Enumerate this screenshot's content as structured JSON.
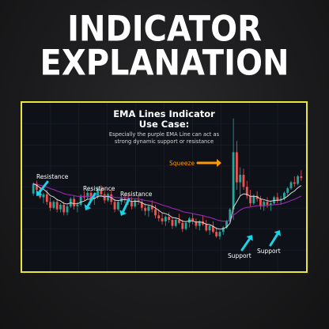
{
  "header": {
    "line1": "INDICATOR",
    "line2": "EXPLANATION"
  },
  "panel": {
    "title_line1": "EMA Lines Indicator",
    "title_line2": "Use Case:",
    "desc_line1": "Especially the purple EMA Line can act as",
    "desc_line2": "strong dynamic support or resistance"
  },
  "colors": {
    "border": "#e9e63a",
    "background": "#0e1118",
    "up_candle": "#26a69a",
    "down_candle": "#ef5350",
    "ema_white": "#d9d9d9",
    "ema_purple": "#9c27b0",
    "arrow_cyan": "#19d3e6",
    "arrow_orange": "#ff9800"
  },
  "chart_data": {
    "type": "candlestick",
    "ylim": [
      0,
      200
    ],
    "grid": true,
    "annotations": [
      {
        "text": "Resistance",
        "color": "#ffffff",
        "arrow": "arrow-cyan"
      },
      {
        "text": "Resistance",
        "color": "#ffffff",
        "arrow": "arrow-cyan"
      },
      {
        "text": "Resistance",
        "color": "#ffffff",
        "arrow": "arrow-cyan"
      },
      {
        "text": "Squeeze",
        "color": "#ff9800",
        "arrow": "arrow-orange"
      },
      {
        "text": "Support",
        "color": "#ffffff",
        "arrow": "arrow-cyan"
      },
      {
        "text": "Support",
        "color": "#ffffff",
        "arrow": "arrow-cyan"
      }
    ],
    "candles": [
      [
        95,
        110,
        92,
        108
      ],
      [
        108,
        112,
        96,
        100
      ],
      [
        100,
        104,
        88,
        90
      ],
      [
        90,
        96,
        82,
        94
      ],
      [
        94,
        100,
        80,
        84
      ],
      [
        84,
        90,
        72,
        76
      ],
      [
        76,
        86,
        74,
        84
      ],
      [
        84,
        88,
        70,
        74
      ],
      [
        74,
        82,
        70,
        80
      ],
      [
        80,
        84,
        66,
        70
      ],
      [
        70,
        80,
        66,
        78
      ],
      [
        78,
        90,
        76,
        88
      ],
      [
        88,
        92,
        74,
        78
      ],
      [
        78,
        84,
        70,
        80
      ],
      [
        80,
        94,
        78,
        92
      ],
      [
        92,
        98,
        86,
        90
      ],
      [
        90,
        100,
        88,
        96
      ],
      [
        96,
        100,
        84,
        88
      ],
      [
        88,
        92,
        80,
        90
      ],
      [
        90,
        104,
        88,
        102
      ],
      [
        102,
        106,
        90,
        94
      ],
      [
        94,
        98,
        82,
        86
      ],
      [
        86,
        96,
        84,
        94
      ],
      [
        94,
        100,
        80,
        84
      ],
      [
        84,
        88,
        70,
        74
      ],
      [
        74,
        86,
        72,
        84
      ],
      [
        84,
        92,
        80,
        90
      ],
      [
        90,
        96,
        82,
        88
      ],
      [
        88,
        94,
        80,
        84
      ],
      [
        84,
        90,
        74,
        78
      ],
      [
        78,
        88,
        76,
        86
      ],
      [
        86,
        92,
        80,
        84
      ],
      [
        84,
        88,
        72,
        76
      ],
      [
        76,
        82,
        66,
        72
      ],
      [
        72,
        80,
        64,
        78
      ],
      [
        78,
        86,
        70,
        74
      ],
      [
        74,
        80,
        62,
        66
      ],
      [
        66,
        74,
        58,
        62
      ],
      [
        62,
        70,
        54,
        58
      ],
      [
        58,
        66,
        52,
        64
      ],
      [
        64,
        70,
        56,
        60
      ],
      [
        60,
        64,
        48,
        52
      ],
      [
        52,
        62,
        50,
        60
      ],
      [
        60,
        68,
        54,
        56
      ],
      [
        56,
        60,
        44,
        48
      ],
      [
        48,
        58,
        46,
        56
      ],
      [
        56,
        64,
        50,
        62
      ],
      [
        62,
        68,
        54,
        58
      ],
      [
        58,
        62,
        48,
        52
      ],
      [
        52,
        60,
        46,
        58
      ],
      [
        58,
        66,
        52,
        54
      ],
      [
        54,
        60,
        44,
        46
      ],
      [
        46,
        54,
        40,
        52
      ],
      [
        52,
        58,
        42,
        44
      ],
      [
        44,
        50,
        36,
        38
      ],
      [
        38,
        46,
        34,
        44
      ],
      [
        44,
        52,
        40,
        50
      ],
      [
        50,
        60,
        48,
        58
      ],
      [
        58,
        76,
        56,
        74
      ],
      [
        74,
        195,
        60,
        150
      ],
      [
        150,
        165,
        100,
        110
      ],
      [
        110,
        130,
        92,
        120
      ],
      [
        120,
        128,
        100,
        104
      ],
      [
        104,
        112,
        88,
        92
      ],
      [
        92,
        100,
        78,
        82
      ],
      [
        82,
        94,
        80,
        92
      ],
      [
        92,
        98,
        84,
        88
      ],
      [
        88,
        92,
        74,
        78
      ],
      [
        78,
        86,
        72,
        84
      ],
      [
        84,
        90,
        76,
        80
      ],
      [
        80,
        86,
        72,
        82
      ],
      [
        82,
        92,
        80,
        90
      ],
      [
        90,
        96,
        82,
        86
      ],
      [
        86,
        92,
        80,
        88
      ],
      [
        88,
        98,
        86,
        96
      ],
      [
        96,
        104,
        92,
        102
      ],
      [
        102,
        112,
        100,
        110
      ],
      [
        110,
        118,
        104,
        108
      ],
      [
        108,
        120,
        106,
        118
      ],
      [
        118,
        126,
        112,
        116
      ]
    ]
  }
}
